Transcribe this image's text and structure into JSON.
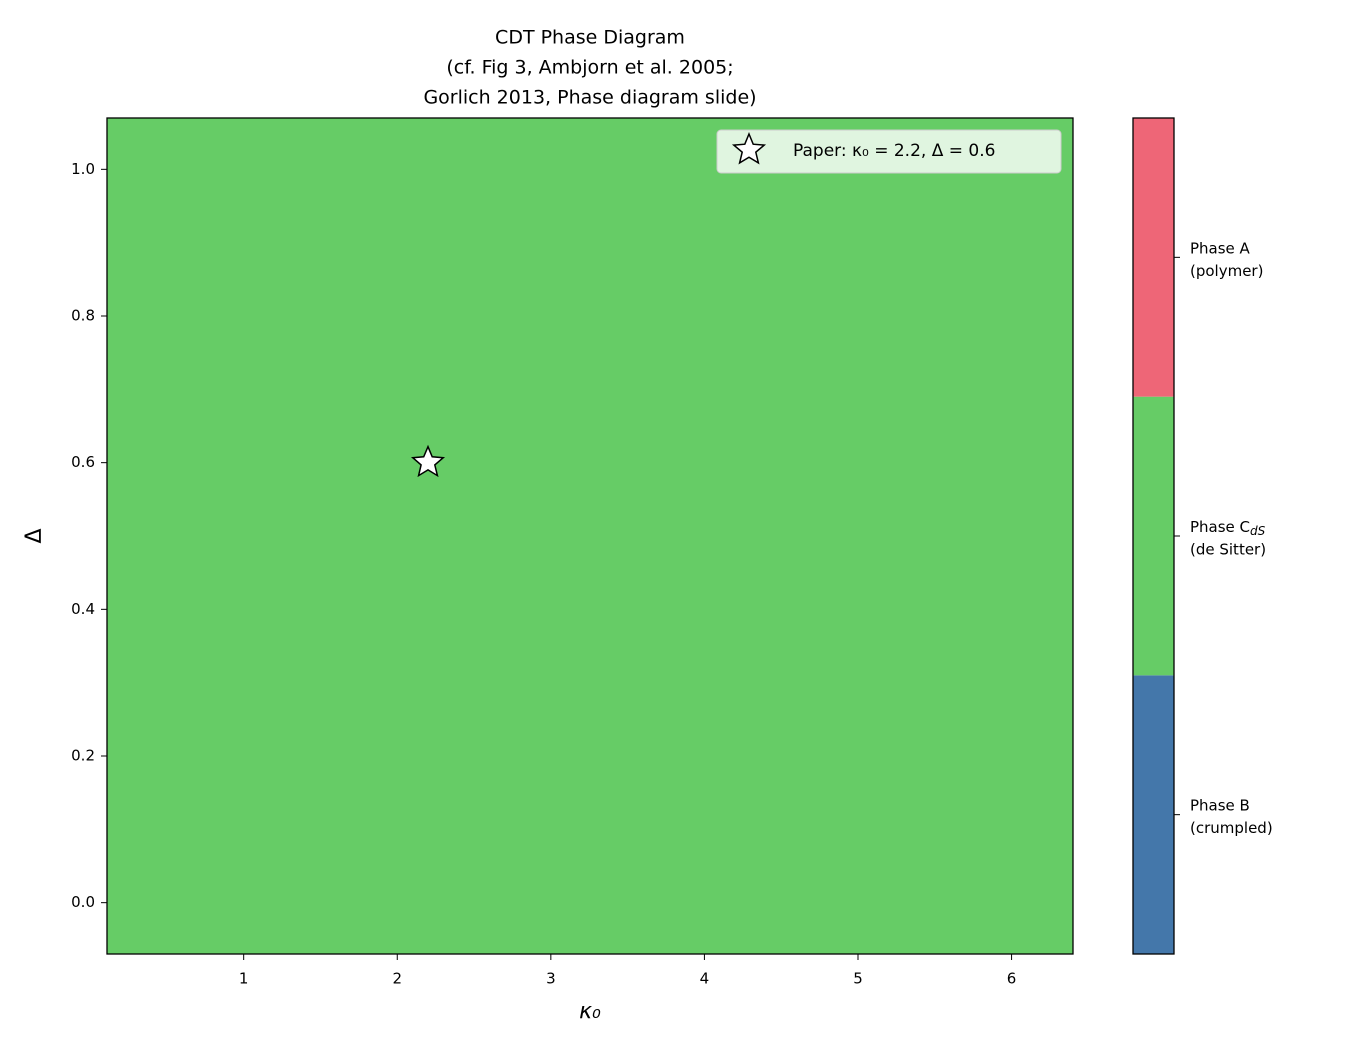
{
  "chart_data": {
    "type": "heatmap",
    "title": [
      "CDT Phase Diagram",
      "(cf. Fig 3, Ambjorn et al. 2005;",
      "Gorlich 2013, Phase diagram slide)"
    ],
    "x_label": "κ₀",
    "y_label": "Δ",
    "xlim": [
      0.11,
      6.4
    ],
    "ylim": [
      -0.07,
      1.07
    ],
    "xticks": [
      1,
      2,
      3,
      4,
      5,
      6
    ],
    "yticks": [
      {
        "value": 0,
        "label": "0.0"
      },
      {
        "value": 0.2,
        "label": "0.2"
      },
      {
        "value": 0.4,
        "label": "0.4"
      },
      {
        "value": 0.6,
        "label": "0.6"
      },
      {
        "value": 0.8,
        "label": "0.8"
      },
      {
        "value": 1,
        "label": "1.0"
      }
    ],
    "z": [
      [
        1
      ]
    ],
    "series": [
      {
        "name": "Paper: κ₀ = 2.2, Δ = 0.6",
        "type": "scatter",
        "marker": "star",
        "color": "#ffffff",
        "x": [
          2.2
        ],
        "y": [
          0.6
        ]
      }
    ],
    "legend": "upper right",
    "colorbar": {
      "lim": [
        -0.5,
        2.5
      ],
      "colors": [
        "#4477aa",
        "#66cc66",
        "#ee6677"
      ],
      "ticks": [
        {
          "value": 0,
          "label": "Phase B",
          "note": "(crumpled)"
        },
        {
          "value": 1,
          "label": "Phase C",
          "subscript": "dS",
          "note": "(de Sitter)"
        },
        {
          "value": 2,
          "label": "Phase A",
          "note": "(polymer)"
        }
      ]
    }
  }
}
